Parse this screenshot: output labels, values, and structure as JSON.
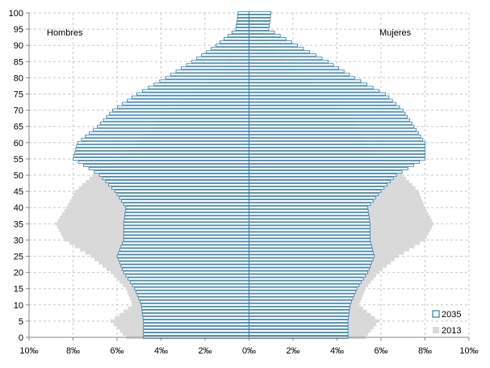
{
  "chart_data": {
    "type": "bar",
    "orientation": "horizontal-pyramid",
    "x_axis": {
      "min": -10,
      "max": 10,
      "step": 2,
      "unit": "‰",
      "tick_labels": [
        "10‰",
        "8‰",
        "6‰",
        "4‰",
        "2‰",
        "0‰",
        "2‰",
        "4‰",
        "6‰",
        "8‰",
        "10‰"
      ]
    },
    "y_axis": {
      "min": 0,
      "max": 100,
      "step": 5,
      "tick_labels": [
        "0",
        "5",
        "10",
        "15",
        "20",
        "25",
        "30",
        "35",
        "40",
        "45",
        "50",
        "55",
        "60",
        "65",
        "70",
        "75",
        "80",
        "85",
        "90",
        "95",
        "100"
      ]
    },
    "grid": true,
    "legend_position": "bottom-right",
    "side_labels": {
      "left": "Hombres",
      "right": "Mujeres"
    },
    "series": [
      {
        "name": "2013",
        "color": "#d9d9d9",
        "style": "filled",
        "ages": [
          0,
          5,
          10,
          15,
          20,
          25,
          30,
          35,
          40,
          45,
          50,
          55,
          60,
          65,
          70,
          75,
          80,
          85,
          90,
          95,
          100
        ],
        "men": [
          5.6,
          6.3,
          5.3,
          5.6,
          6.3,
          7.2,
          8.4,
          8.8,
          8.3,
          7.9,
          7.1,
          5.9,
          5.0,
          4.3,
          3.5,
          2.6,
          1.7,
          1.0,
          0.45,
          0.15,
          0.04
        ],
        "women": [
          5.3,
          5.9,
          5.0,
          5.3,
          5.9,
          6.8,
          8.0,
          8.4,
          8.0,
          7.7,
          7.0,
          6.0,
          5.3,
          4.8,
          4.2,
          3.5,
          2.6,
          1.7,
          0.9,
          0.35,
          0.1
        ]
      },
      {
        "name": "2035",
        "color": "#4f9dbf",
        "fill": "#ffffff",
        "style": "outline",
        "ages": [
          0,
          5,
          10,
          15,
          20,
          25,
          30,
          35,
          40,
          45,
          50,
          55,
          60,
          65,
          70,
          75,
          80,
          85,
          90,
          95,
          100
        ],
        "men": [
          4.8,
          4.8,
          4.9,
          5.2,
          5.7,
          6.0,
          5.7,
          5.7,
          5.6,
          6.1,
          6.8,
          8.0,
          7.8,
          6.9,
          6.2,
          5.1,
          3.8,
          2.6,
          1.5,
          0.6,
          0.5
        ],
        "women": [
          4.5,
          4.5,
          4.6,
          4.9,
          5.4,
          5.7,
          5.5,
          5.5,
          5.4,
          6.0,
          6.7,
          8.0,
          8.0,
          7.5,
          7.0,
          6.2,
          4.8,
          3.6,
          2.2,
          0.9,
          1.0
        ]
      }
    ]
  },
  "legend": {
    "items": [
      {
        "label": "2035",
        "icon": "outline-square"
      },
      {
        "label": "2013",
        "icon": "filled-square"
      }
    ]
  }
}
